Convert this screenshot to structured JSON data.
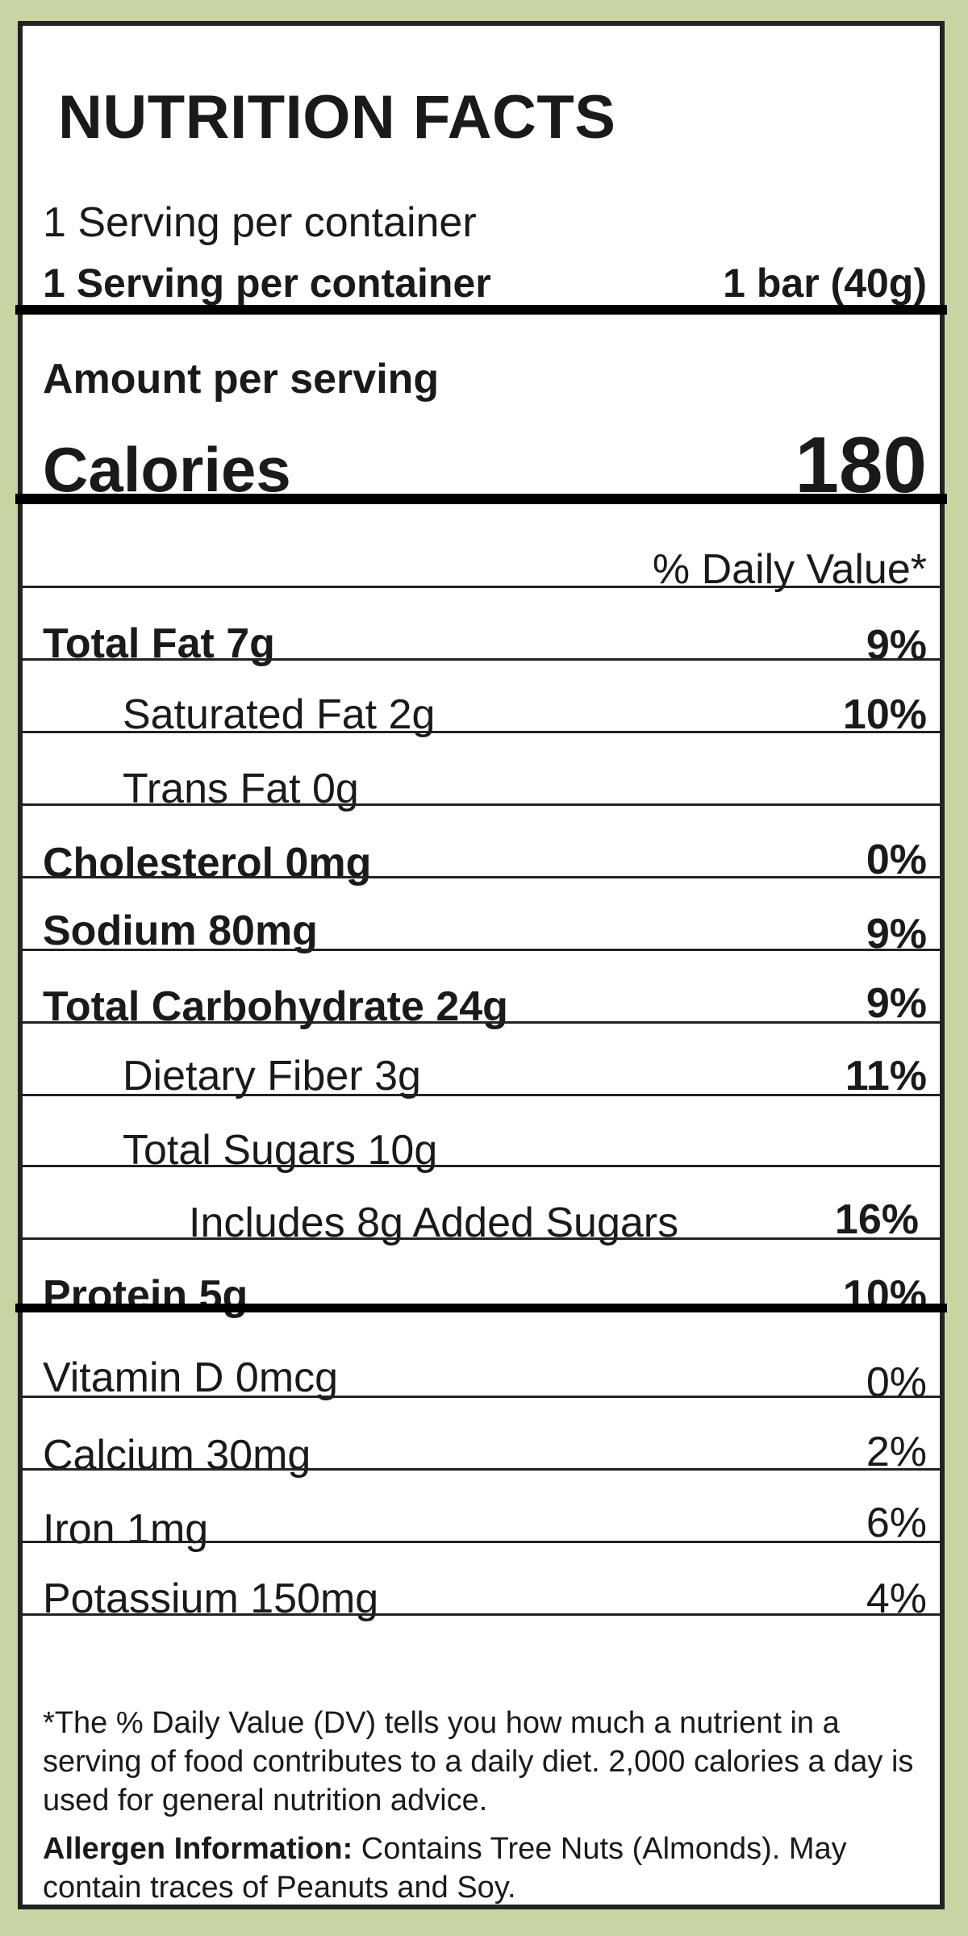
{
  "title": "NUTRITION FACTS",
  "servings_per_container": "1 Serving per container",
  "serving_line_label": "1 Serving per container",
  "serving_size": "1 bar (40g)",
  "amount_per_serving": "Amount per serving",
  "calories_label": "Calories",
  "calories_value": "180",
  "daily_value_header": "% Daily Value*",
  "nutrients": [
    {
      "name": "Total Fat 7g",
      "dv": "9%"
    },
    {
      "name": "Saturated Fat 2g",
      "dv": "10%"
    },
    {
      "name": "Trans Fat 0g",
      "dv": ""
    },
    {
      "name": "Cholesterol 0mg",
      "dv": "0%"
    },
    {
      "name": "Sodium 80mg",
      "dv": "9%"
    },
    {
      "name": "Total Carbohydrate 24g",
      "dv": "9%"
    },
    {
      "name": "Dietary Fiber 3g",
      "dv": "11%"
    },
    {
      "name": "Total Sugars 10g",
      "dv": ""
    },
    {
      "name": "Includes 8g Added Sugars",
      "dv": "16%"
    },
    {
      "name": "Protein 5g",
      "dv": "10%"
    }
  ],
  "micronutrients": [
    {
      "name": "Vitamin D 0mcg",
      "dv": "0%"
    },
    {
      "name": "Calcium 30mg",
      "dv": "2%"
    },
    {
      "name": "Iron 1mg",
      "dv": "6%"
    },
    {
      "name": "Potassium 150mg",
      "dv": "4%"
    }
  ],
  "footnote": "*The % Daily Value (DV) tells you how much a nutrient in a serving of food contributes to a daily diet. 2,000 calories a day is used for general nutrition advice.",
  "allergen_label": "Allergen Information:",
  "allergen_text": "Contains Tree Nuts (Almonds). May contain traces of Peanuts and Soy.",
  "colors": {
    "background": "#c8d5a2",
    "border": "#222222",
    "label": "#ffffff"
  }
}
